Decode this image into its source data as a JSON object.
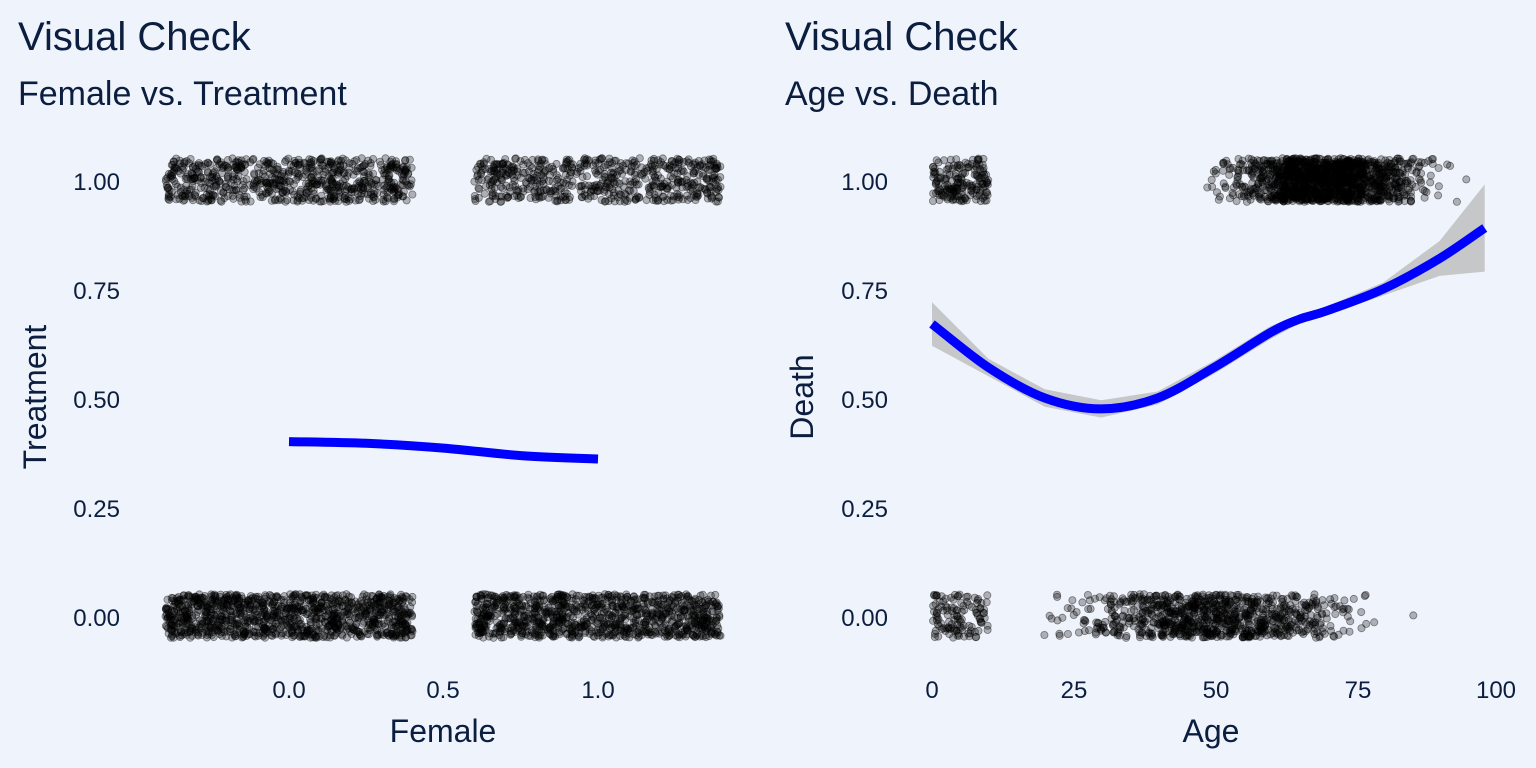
{
  "colors": {
    "background": "#eff3fb",
    "text": "#0b1e3f",
    "points": "#000000",
    "smooth_line": "#0000ff",
    "ribbon": "#b8b8b8"
  },
  "panels": [
    {
      "title": "Visual Check",
      "subtitle": "Female vs. Treatment",
      "xlabel": "Female",
      "ylabel": "Treatment",
      "x_ticks": [
        "0.0",
        "0.5",
        "1.0"
      ],
      "y_ticks": [
        "0.00",
        "0.25",
        "0.50",
        "0.75",
        "1.00"
      ]
    },
    {
      "title": "Visual Check",
      "subtitle": "Age vs. Death",
      "xlabel": "Age",
      "ylabel": "Death",
      "x_ticks": [
        "0",
        "25",
        "50",
        "75",
        "100"
      ],
      "y_ticks": [
        "0.00",
        "0.25",
        "0.50",
        "0.75",
        "1.00"
      ]
    }
  ],
  "chart_data": [
    {
      "type": "scatter",
      "title": "Visual Check",
      "subtitle": "Female vs. Treatment",
      "xlabel": "Female",
      "ylabel": "Treatment",
      "xlim": [
        -0.42,
        1.42
      ],
      "ylim": [
        -0.1,
        1.1
      ],
      "x_ticks": [
        0.0,
        0.5,
        1.0
      ],
      "y_ticks": [
        0.0,
        0.25,
        0.5,
        0.75,
        1.0
      ],
      "jitter": {
        "x": 0.4,
        "y": 0.05
      },
      "point_groups": [
        {
          "x": 0,
          "y": 1,
          "n": 700
        },
        {
          "x": 1,
          "y": 1,
          "n": 600
        },
        {
          "x": 0,
          "y": 0,
          "n": 1100
        },
        {
          "x": 1,
          "y": 0,
          "n": 1000
        }
      ],
      "smooth": {
        "color": "#0000ff",
        "x": [
          0.0,
          0.25,
          0.5,
          0.75,
          1.0
        ],
        "y": [
          0.4,
          0.396,
          0.385,
          0.368,
          0.36
        ],
        "ymin": [
          0.392,
          0.39,
          0.379,
          0.361,
          0.35
        ],
        "ymax": [
          0.408,
          0.402,
          0.391,
          0.375,
          0.37
        ]
      },
      "grid": false
    },
    {
      "type": "scatter",
      "title": "Visual Check",
      "subtitle": "Age vs. Death",
      "xlabel": "Age",
      "ylabel": "Death",
      "xlim": [
        -2,
        100
      ],
      "ylim": [
        -0.1,
        1.1
      ],
      "x_ticks": [
        0,
        25,
        50,
        75,
        100
      ],
      "y_ticks": [
        0.0,
        0.25,
        0.5,
        0.75,
        1.0
      ],
      "jitter": {
        "x": 0.4,
        "y": 0.05
      },
      "point_groups": [
        {
          "xmin": 0,
          "xmax": 10,
          "y": 1,
          "n": 180
        },
        {
          "xmin": 18,
          "xmax": 96,
          "y": 1,
          "n": 1400,
          "center": 70,
          "spread": 14
        },
        {
          "xmin": 0,
          "xmax": 10,
          "y": 0,
          "n": 120
        },
        {
          "xmin": 18,
          "xmax": 96,
          "y": 0,
          "n": 900,
          "center": 50,
          "spread": 20
        }
      ],
      "smooth": {
        "color": "#0000ff",
        "x": [
          0,
          10,
          20,
          30,
          40,
          50,
          60,
          65,
          70,
          80,
          90,
          98
        ],
        "y": [
          0.67,
          0.57,
          0.5,
          0.475,
          0.5,
          0.57,
          0.65,
          0.68,
          0.7,
          0.75,
          0.82,
          0.89
        ],
        "ymin": [
          0.62,
          0.55,
          0.48,
          0.455,
          0.485,
          0.555,
          0.635,
          0.67,
          0.69,
          0.735,
          0.78,
          0.79
        ],
        "ymax": [
          0.72,
          0.59,
          0.52,
          0.495,
          0.515,
          0.585,
          0.665,
          0.69,
          0.71,
          0.765,
          0.86,
          0.99
        ]
      },
      "grid": false
    }
  ]
}
